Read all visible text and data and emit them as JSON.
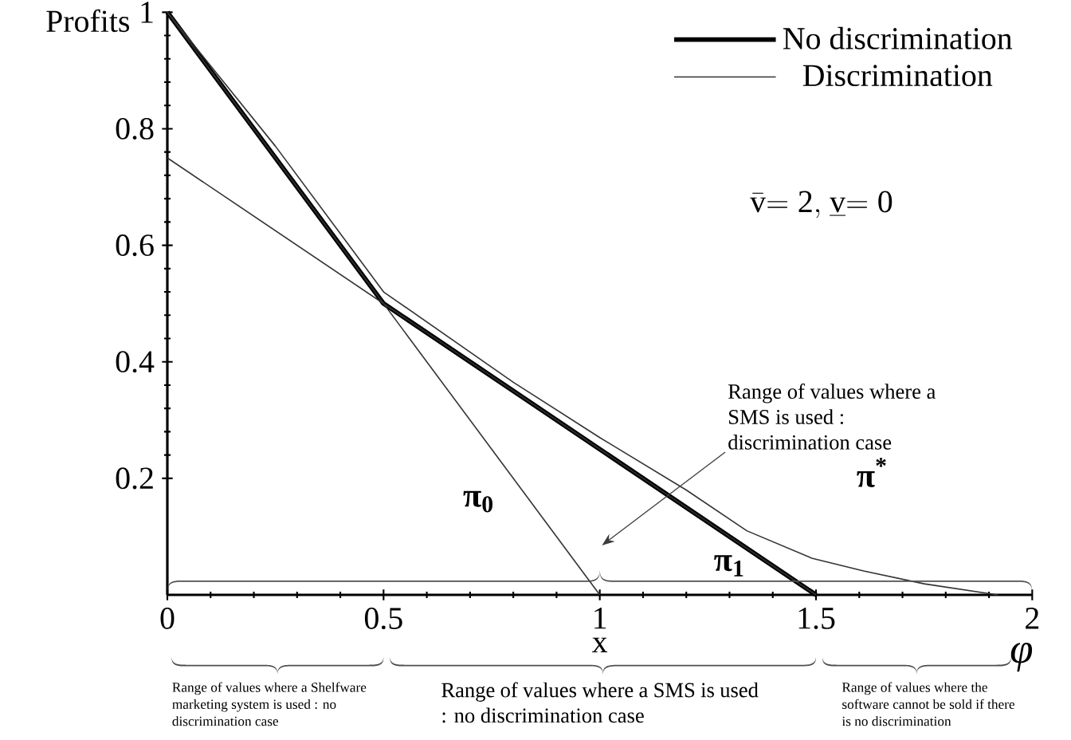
{
  "chart_data": {
    "type": "line",
    "xlabel": "φ",
    "ylabel": "Profits",
    "xlim": [
      0,
      2
    ],
    "ylim": [
      0,
      1
    ],
    "xticks": [
      0,
      0.5,
      1,
      1.5,
      2
    ],
    "yticks": [
      0.2,
      0.4,
      0.6,
      0.8,
      1
    ],
    "legend": "top right",
    "grid": false,
    "marker": "none",
    "series": [
      {
        "name": "No discrimination",
        "color": "#000000",
        "x": [
          0,
          0.5,
          1.5
        ],
        "values": [
          1,
          0.5,
          0
        ]
      },
      {
        "name": "Discrimination",
        "color": "#333333",
        "x": [
          0,
          0.25,
          0.5,
          0.8,
          1.0,
          1.2,
          1.34,
          1.49,
          1.61,
          1.75,
          1.92
        ],
        "values": [
          1,
          0.77,
          0.52,
          0.365,
          0.27,
          0.18,
          0.11,
          0.063,
          0.041,
          0.019,
          0
        ]
      },
      {
        "color": "#333333",
        "x": [
          0,
          1
        ],
        "values": [
          1,
          0
        ]
      },
      {
        "color": "#333333",
        "x": [
          0,
          1.5
        ],
        "values": [
          0.75,
          0
        ]
      }
    ],
    "annotations": [
      "π$_{0}$",
      "π$_{1}$",
      "π$^{*}$",
      "x",
      "\\bar{\\mathrm{v}}\\mathrm{=2,}\\ \\underline{\\mathrm{v}}\\mathrm{=0}",
      "Range of values where a SMS is used : discrimination case",
      "Range of values where a Shelfware marketing system is used : no discrimination case",
      "Range of values where a SMS is used : no discrimination case",
      "Range of values where the software cannot be sold if there is no discrimination"
    ]
  }
}
